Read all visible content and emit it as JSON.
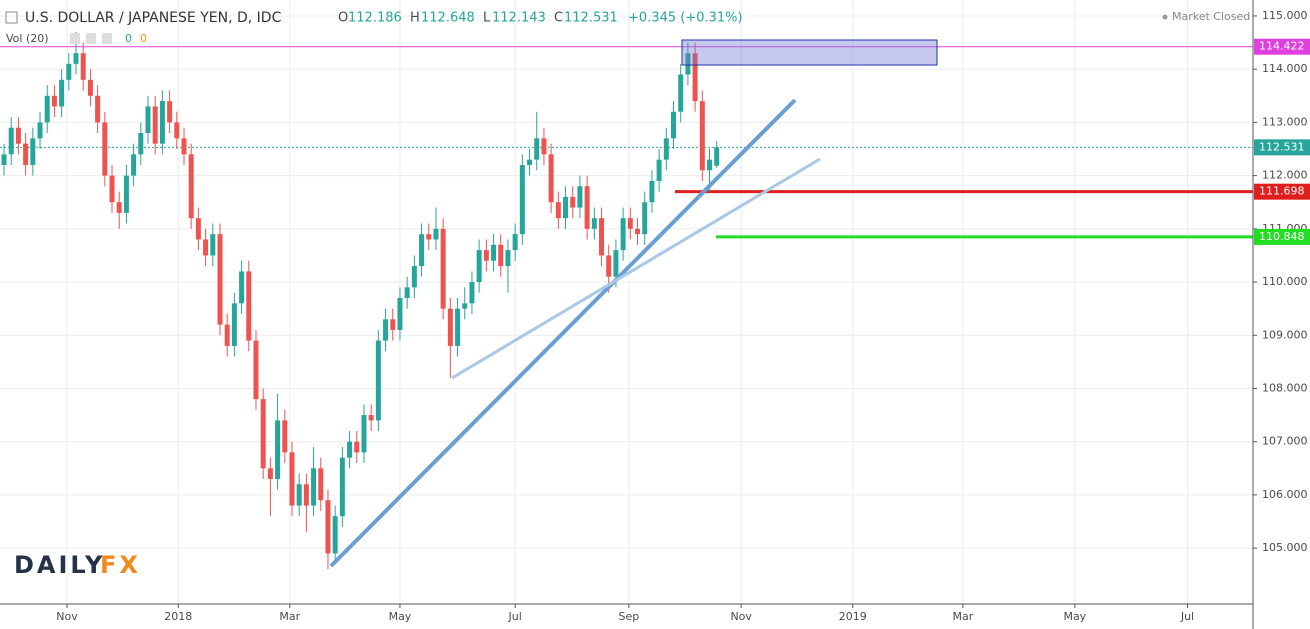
{
  "chart_data": {
    "type": "candlestick",
    "title": "U.S. DOLLAR / JAPANESE YEN, D, IDC",
    "ohlc_labels": [
      "O",
      "H",
      "L",
      "C"
    ],
    "change": "+0.345 (+0.31%)",
    "status": "Market Closed",
    "volume_label": "Vol (20)",
    "volume_values": [
      0,
      0
    ],
    "logo": [
      "DAILY",
      "FX"
    ],
    "up_color": "#26a69a",
    "down_color": "#ef5350",
    "grid": true,
    "candles": {
      "open": [
        112.2,
        112.4,
        112.9,
        112.6,
        112.2,
        112.7,
        113.0,
        113.5,
        113.3,
        113.8,
        114.1,
        114.3,
        113.8,
        113.5,
        113.0,
        112.0,
        111.5,
        111.3,
        112.0,
        112.4,
        112.8,
        113.3,
        112.6,
        113.4,
        113.0,
        112.7,
        112.4,
        111.2,
        110.8,
        110.5,
        110.9,
        109.2,
        108.8,
        109.6,
        110.2,
        108.9,
        107.8,
        106.5,
        106.3,
        107.4,
        106.8,
        105.8,
        106.2,
        105.8,
        106.5,
        105.9,
        104.9,
        105.6,
        106.7,
        107.0,
        106.8,
        107.5,
        107.4,
        108.9,
        109.3,
        109.1,
        109.7,
        109.9,
        110.3,
        110.9,
        110.8,
        111.0,
        109.5,
        108.8,
        109.5,
        109.6,
        110.0,
        110.6,
        110.4,
        110.7,
        110.3,
        110.6,
        110.9,
        112.2,
        112.3,
        112.7,
        112.4,
        111.5,
        111.2,
        111.6,
        111.4,
        111.8,
        111.0,
        111.2,
        110.5,
        110.1,
        110.6,
        111.2,
        111.0,
        110.9,
        111.5,
        111.9,
        112.3,
        112.7,
        113.2,
        113.9,
        114.3,
        113.4,
        112.1,
        112.186
      ],
      "high": [
        112.6,
        113.1,
        113.1,
        112.8,
        112.9,
        113.2,
        113.7,
        113.7,
        114.0,
        114.3,
        114.7,
        114.5,
        114.0,
        113.7,
        113.2,
        112.2,
        111.7,
        112.2,
        112.6,
        113.0,
        113.5,
        113.5,
        113.6,
        113.6,
        113.2,
        112.9,
        112.6,
        111.4,
        111.0,
        111.1,
        111.1,
        109.4,
        109.8,
        110.4,
        110.4,
        109.1,
        108.0,
        106.7,
        107.9,
        107.6,
        107.0,
        106.4,
        106.4,
        106.9,
        106.7,
        106.1,
        105.8,
        106.9,
        107.2,
        107.2,
        107.7,
        107.7,
        109.1,
        109.5,
        109.5,
        109.9,
        110.1,
        110.5,
        111.1,
        111.1,
        111.4,
        111.2,
        109.7,
        109.7,
        109.9,
        110.2,
        110.8,
        110.8,
        110.9,
        110.9,
        110.8,
        111.1,
        112.4,
        112.5,
        113.2,
        112.9,
        112.6,
        111.7,
        111.8,
        111.8,
        112.0,
        112.0,
        111.4,
        111.4,
        110.7,
        110.8,
        111.4,
        111.4,
        111.2,
        111.7,
        112.1,
        112.5,
        112.9,
        113.4,
        114.1,
        114.5,
        114.5,
        113.6,
        112.5,
        112.648
      ],
      "low": [
        112.0,
        112.2,
        112.4,
        112.0,
        112.0,
        112.5,
        112.8,
        113.1,
        113.1,
        113.6,
        113.9,
        113.6,
        113.3,
        112.8,
        111.8,
        111.3,
        111.0,
        111.1,
        111.8,
        112.2,
        112.6,
        112.4,
        112.4,
        112.8,
        112.5,
        112.2,
        111.0,
        110.6,
        110.3,
        110.3,
        109.0,
        108.6,
        108.6,
        109.4,
        108.7,
        107.6,
        106.3,
        105.6,
        106.1,
        106.6,
        105.6,
        105.6,
        105.3,
        105.6,
        105.7,
        104.6,
        104.7,
        105.4,
        106.5,
        106.6,
        106.6,
        107.2,
        107.2,
        108.7,
        108.9,
        108.9,
        109.5,
        109.7,
        110.1,
        110.6,
        110.6,
        109.3,
        108.2,
        108.6,
        109.3,
        109.4,
        109.8,
        110.2,
        110.2,
        110.1,
        109.8,
        110.4,
        110.7,
        112.0,
        112.1,
        112.2,
        111.3,
        111.0,
        111.0,
        111.2,
        111.2,
        110.8,
        110.8,
        110.3,
        109.8,
        109.9,
        110.4,
        110.8,
        110.7,
        110.7,
        111.3,
        111.7,
        112.1,
        112.5,
        113.0,
        113.7,
        113.2,
        111.9,
        111.7,
        112.143
      ],
      "close": [
        112.4,
        112.9,
        112.6,
        112.2,
        112.7,
        113.0,
        113.5,
        113.3,
        113.8,
        114.1,
        114.3,
        113.8,
        113.5,
        113.0,
        112.0,
        111.5,
        111.3,
        112.0,
        112.4,
        112.8,
        113.3,
        112.6,
        113.4,
        113.0,
        112.7,
        112.4,
        111.2,
        110.8,
        110.5,
        110.9,
        109.2,
        108.8,
        109.6,
        110.2,
        108.9,
        107.8,
        106.5,
        106.3,
        107.4,
        106.8,
        105.8,
        106.2,
        105.8,
        106.5,
        105.9,
        104.9,
        105.6,
        106.7,
        107.0,
        106.8,
        107.5,
        107.4,
        108.9,
        109.3,
        109.1,
        109.7,
        109.9,
        110.3,
        110.9,
        110.8,
        111.0,
        109.5,
        108.8,
        109.5,
        109.6,
        110.0,
        110.6,
        110.4,
        110.7,
        110.3,
        110.6,
        110.9,
        112.2,
        112.3,
        112.7,
        112.4,
        111.5,
        111.2,
        111.6,
        111.4,
        111.8,
        111.0,
        111.2,
        110.5,
        110.1,
        110.6,
        111.2,
        111.0,
        110.9,
        111.5,
        111.9,
        112.3,
        112.7,
        113.2,
        113.9,
        114.3,
        113.4,
        112.1,
        112.3,
        112.531
      ]
    },
    "levels": [
      {
        "value": 114.422,
        "color": "#e040e0"
      },
      {
        "value": 112.531,
        "color": "#26a69a"
      },
      {
        "value": 111.698,
        "color": "#e01e1e"
      },
      {
        "value": 110.848,
        "color": "#22dd22"
      }
    ],
    "xlim": [
      -0.56,
      173.5
    ],
    "xticks": [
      {
        "value": 8.75,
        "label": "Nov"
      },
      {
        "value": 24.2,
        "label": "2018"
      },
      {
        "value": 39.7,
        "label": "Mar"
      },
      {
        "value": 55,
        "label": "May"
      },
      {
        "value": 71,
        "label": "Jul"
      },
      {
        "value": 86.8,
        "label": "Sep"
      },
      {
        "value": 102.4,
        "label": "Nov"
      },
      {
        "value": 117.9,
        "label": "2019"
      },
      {
        "value": 133.2,
        "label": "Mar"
      },
      {
        "value": 148.75,
        "label": "May"
      },
      {
        "value": 164.4,
        "label": "Jul"
      }
    ],
    "ylim": [
      103.95,
      115.3
    ],
    "yticks": [
      {
        "value": 105,
        "label": "105.000"
      },
      {
        "value": 106,
        "label": "106.000"
      },
      {
        "value": 107,
        "label": "107.000"
      },
      {
        "value": 108,
        "label": "108.000"
      },
      {
        "value": 109,
        "label": "109.000"
      },
      {
        "value": 110,
        "label": "110.000"
      },
      {
        "value": 111,
        "label": "111.000"
      },
      {
        "value": 112,
        "label": "112.000"
      },
      {
        "value": 113,
        "label": "113.000"
      },
      {
        "value": 114,
        "label": "114.000"
      },
      {
        "value": 115,
        "label": "115.000"
      }
    ]
  }
}
